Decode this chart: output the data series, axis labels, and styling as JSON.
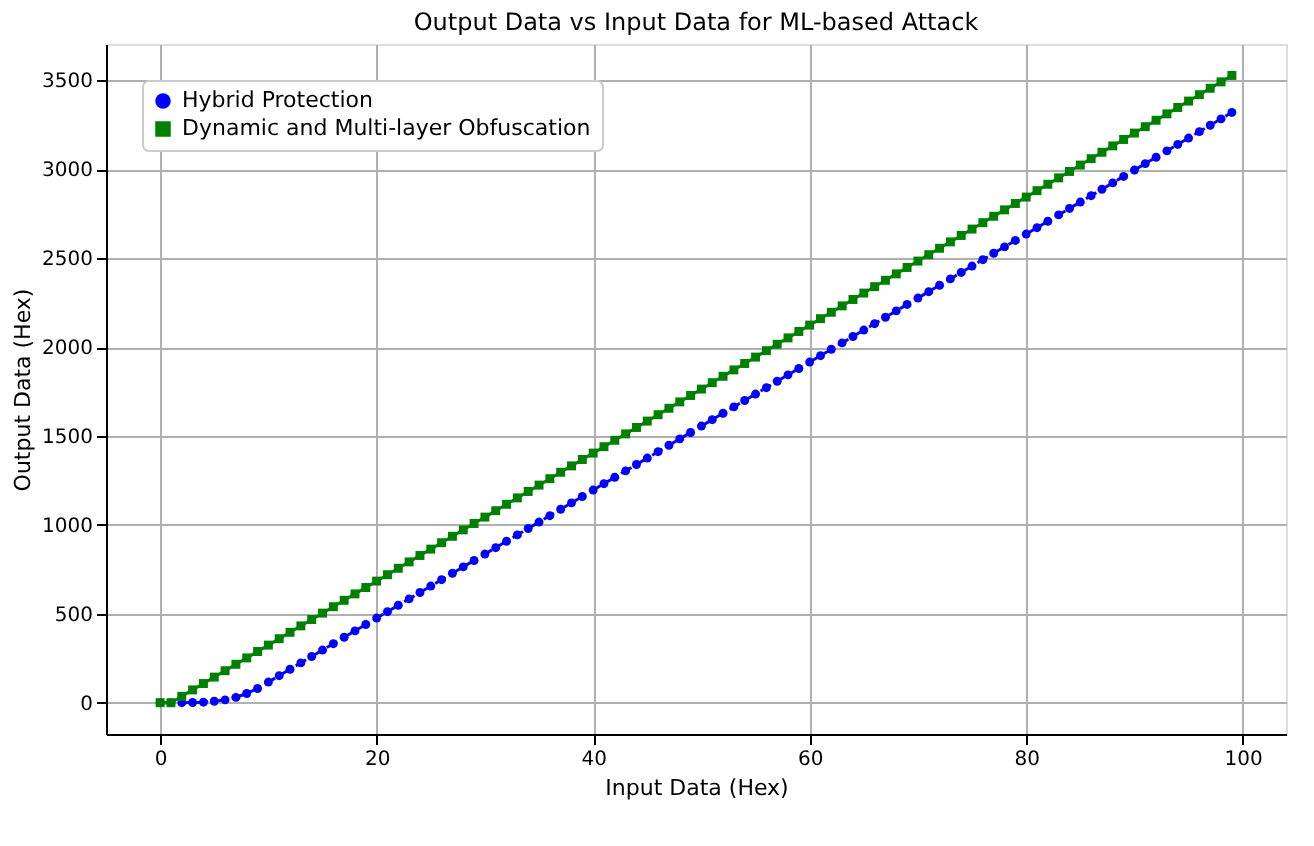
{
  "chart_data": {
    "type": "line",
    "title": "Output Data vs Input Data for ML-based Attack",
    "xlabel": "Input Data (Hex)",
    "ylabel": "Output Data (Hex)",
    "x": [
      0,
      1,
      2,
      3,
      4,
      5,
      6,
      7,
      8,
      9,
      10,
      11,
      12,
      13,
      14,
      15,
      16,
      17,
      18,
      19,
      20,
      21,
      22,
      23,
      24,
      25,
      26,
      27,
      28,
      29,
      30,
      31,
      32,
      33,
      34,
      35,
      36,
      37,
      38,
      39,
      40,
      41,
      42,
      43,
      44,
      45,
      46,
      47,
      48,
      49,
      50,
      51,
      52,
      53,
      54,
      55,
      56,
      57,
      58,
      59,
      60,
      61,
      62,
      63,
      64,
      65,
      66,
      67,
      68,
      69,
      70,
      71,
      72,
      73,
      74,
      75,
      76,
      77,
      78,
      79,
      80,
      81,
      82,
      83,
      84,
      85,
      86,
      87,
      88,
      89,
      90,
      91,
      92,
      93,
      94,
      95,
      96,
      97,
      98,
      99
    ],
    "series": [
      {
        "name": "Hybrid Protection",
        "color": "#0000ff",
        "marker": "circle",
        "line_style": "dashed",
        "values": [
          0,
          0,
          0,
          1,
          3,
          8,
          16,
          30,
          52,
          80,
          116,
          152,
          188,
          224,
          260,
          296,
          332,
          368,
          404,
          440,
          476,
          512,
          548,
          584,
          620,
          656,
          692,
          728,
          764,
          800,
          836,
          872,
          908,
          944,
          980,
          1016,
          1052,
          1088,
          1124,
          1160,
          1196,
          1232,
          1268,
          1304,
          1340,
          1376,
          1412,
          1448,
          1484,
          1520,
          1556,
          1592,
          1628,
          1664,
          1700,
          1736,
          1772,
          1808,
          1844,
          1880,
          1916,
          1952,
          1988,
          2024,
          2060,
          2096,
          2132,
          2168,
          2204,
          2240,
          2276,
          2312,
          2348,
          2384,
          2420,
          2456,
          2492,
          2528,
          2564,
          2600,
          2636,
          2672,
          2708,
          2744,
          2780,
          2816,
          2852,
          2888,
          2924,
          2960,
          2996,
          3032,
          3068,
          3104,
          3140,
          3176,
          3212,
          3248,
          3284,
          3320
        ]
      },
      {
        "name": "Dynamic and Multi-layer Obfuscation",
        "color": "#008000",
        "marker": "square",
        "line_style": "solid",
        "values": [
          0,
          0,
          36,
          72,
          108,
          144,
          180,
          216,
          252,
          288,
          324,
          360,
          396,
          432,
          468,
          504,
          540,
          576,
          612,
          648,
          684,
          720,
          756,
          792,
          828,
          864,
          900,
          936,
          972,
          1008,
          1044,
          1080,
          1116,
          1152,
          1188,
          1224,
          1260,
          1296,
          1332,
          1368,
          1404,
          1440,
          1476,
          1512,
          1548,
          1584,
          1620,
          1656,
          1692,
          1728,
          1764,
          1800,
          1836,
          1872,
          1908,
          1944,
          1980,
          2016,
          2052,
          2088,
          2124,
          2160,
          2196,
          2232,
          2268,
          2304,
          2340,
          2376,
          2412,
          2448,
          2484,
          2520,
          2556,
          2592,
          2628,
          2664,
          2700,
          2736,
          2772,
          2808,
          2844,
          2880,
          2916,
          2952,
          2988,
          3024,
          3060,
          3096,
          3132,
          3168,
          3204,
          3240,
          3276,
          3312,
          3348,
          3384,
          3420,
          3456,
          3492,
          3528
        ]
      }
    ],
    "xlim": [
      -5,
      104
    ],
    "xticks": [
      0,
      20,
      40,
      60,
      80,
      100
    ],
    "ylim": [
      -176,
      3705
    ],
    "yticks": [
      0,
      500,
      1000,
      1500,
      2000,
      2500,
      3000,
      3500
    ],
    "grid": true,
    "legend": "top left"
  }
}
